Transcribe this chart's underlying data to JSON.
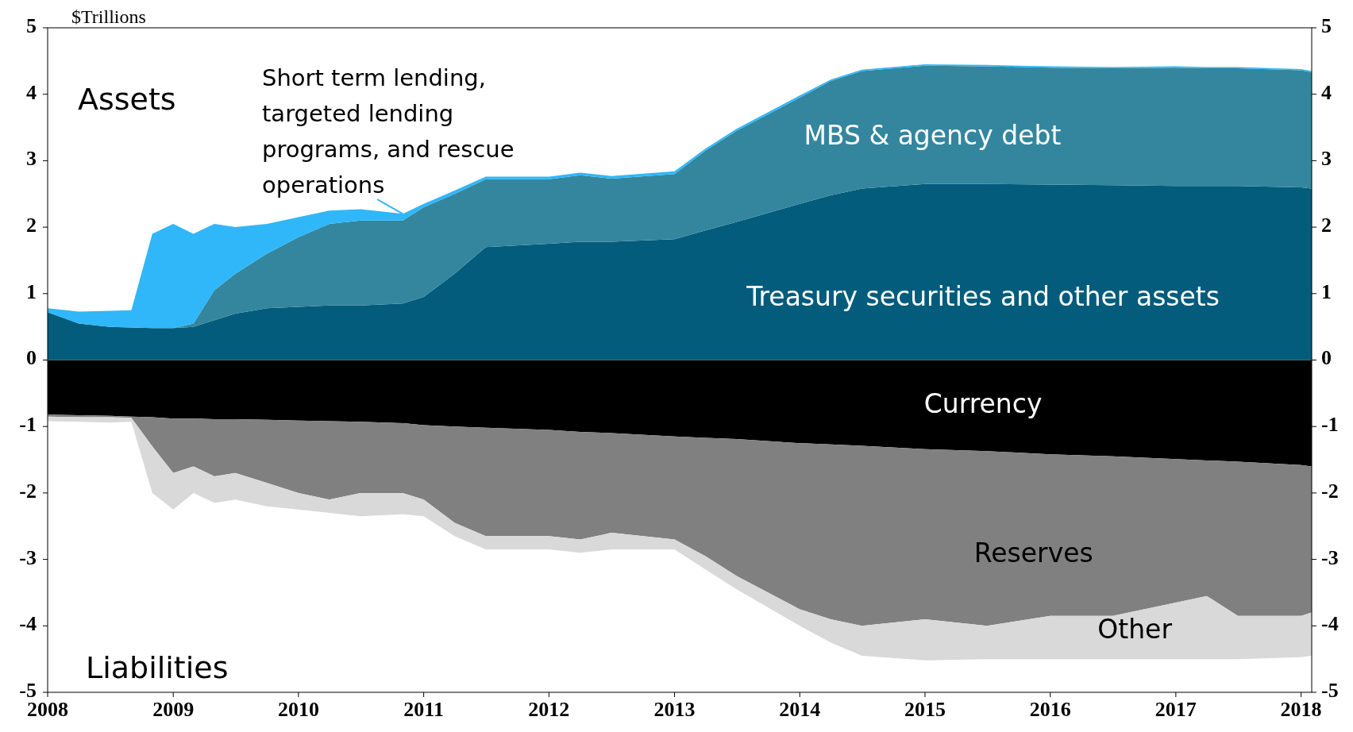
{
  "chart_data": [
    {
      "type": "area",
      "stacked": true,
      "ylabel": "$Trillions",
      "annotations": [
        "Assets"
      ],
      "x": [
        "2008-01",
        "2008-04",
        "2008-07",
        "2008-09",
        "2008-11",
        "2009-01",
        "2009-03",
        "2009-05",
        "2009-07",
        "2009-10",
        "2010-01",
        "2010-04",
        "2010-07",
        "2010-11",
        "2011-01",
        "2011-04",
        "2011-07",
        "2012-01",
        "2012-04",
        "2012-07",
        "2013-01",
        "2013-04",
        "2013-07",
        "2014-01",
        "2014-04",
        "2014-07",
        "2015-01",
        "2015-07",
        "2016-01",
        "2016-07",
        "2017-01",
        "2017-04",
        "2017-07",
        "2018-01",
        "2018-02"
      ],
      "series": [
        {
          "name": "Treasury securities and other assets",
          "color": "#035c7c",
          "values": [
            0.72,
            0.55,
            0.5,
            0.49,
            0.48,
            0.48,
            0.5,
            0.6,
            0.7,
            0.78,
            0.8,
            0.82,
            0.82,
            0.85,
            0.95,
            1.3,
            1.7,
            1.75,
            1.78,
            1.78,
            1.82,
            1.95,
            2.08,
            2.35,
            2.48,
            2.58,
            2.65,
            2.65,
            2.64,
            2.63,
            2.62,
            2.62,
            2.62,
            2.6,
            2.58
          ]
        },
        {
          "name": "MBS & agency debt",
          "color": "#33869e",
          "values": [
            0,
            0,
            0,
            0,
            0,
            0,
            0.05,
            0.45,
            0.6,
            0.82,
            1.05,
            1.23,
            1.28,
            1.25,
            1.35,
            1.2,
            1.02,
            0.97,
            1.0,
            0.95,
            0.98,
            1.2,
            1.37,
            1.6,
            1.72,
            1.77,
            1.78,
            1.77,
            1.76,
            1.76,
            1.78,
            1.77,
            1.77,
            1.76,
            1.75
          ]
        },
        {
          "name": "Short term lending, targeted lending programs, and rescue operations",
          "color": "#2fb7f9",
          "values": [
            0.06,
            0.18,
            0.24,
            0.26,
            1.42,
            1.57,
            1.35,
            1.0,
            0.7,
            0.45,
            0.3,
            0.2,
            0.17,
            0.1,
            0.05,
            0.05,
            0.04,
            0.04,
            0.04,
            0.04,
            0.04,
            0.03,
            0.03,
            0.03,
            0.02,
            0.02,
            0.02,
            0.02,
            0.02,
            0.02,
            0.02,
            0.02,
            0.02,
            0.02,
            0.02
          ]
        }
      ],
      "xlim": [
        "2008-01",
        "2018-02"
      ],
      "xticks": [
        "2008",
        "2009",
        "2010",
        "2011",
        "2012",
        "2013",
        "2014",
        "2015",
        "2016",
        "2017",
        "2018"
      ],
      "ylim": [
        -5,
        5
      ],
      "yticks": [
        5,
        4,
        3,
        2,
        1,
        0,
        -1,
        -2,
        -3,
        -4,
        -5
      ],
      "y2lim": [
        -5,
        5
      ],
      "y2ticks": [
        5,
        4,
        3,
        2,
        1,
        0,
        -1,
        -2,
        -3,
        -4,
        -5
      ]
    },
    {
      "type": "area",
      "stacked": true,
      "tick_labels": false,
      "annotations": [
        "Liabilities"
      ],
      "x": [
        "2008-01",
        "2008-04",
        "2008-07",
        "2008-09",
        "2008-11",
        "2009-01",
        "2009-03",
        "2009-05",
        "2009-07",
        "2009-10",
        "2010-01",
        "2010-04",
        "2010-07",
        "2010-11",
        "2011-01",
        "2011-04",
        "2011-07",
        "2012-01",
        "2012-04",
        "2012-07",
        "2013-01",
        "2013-04",
        "2013-07",
        "2014-01",
        "2014-04",
        "2014-07",
        "2015-01",
        "2015-07",
        "2016-01",
        "2016-07",
        "2017-01",
        "2017-04",
        "2017-07",
        "2018-01",
        "2018-02"
      ],
      "series": [
        {
          "name": "Currency",
          "color": "#000000",
          "values": [
            -0.82,
            -0.83,
            -0.84,
            -0.85,
            -0.86,
            -0.88,
            -0.88,
            -0.89,
            -0.89,
            -0.9,
            -0.91,
            -0.92,
            -0.93,
            -0.95,
            -0.98,
            -1.0,
            -1.02,
            -1.05,
            -1.08,
            -1.1,
            -1.15,
            -1.17,
            -1.19,
            -1.25,
            -1.27,
            -1.29,
            -1.34,
            -1.37,
            -1.42,
            -1.45,
            -1.49,
            -1.51,
            -1.53,
            -1.58,
            -1.6
          ]
        },
        {
          "name": "Reserves",
          "color": "#808080",
          "values": [
            -0.03,
            -0.03,
            -0.02,
            -0.02,
            -0.44,
            -0.82,
            -0.72,
            -0.86,
            -0.81,
            -0.95,
            -1.09,
            -1.18,
            -1.07,
            -1.05,
            -1.12,
            -1.45,
            -1.63,
            -1.6,
            -1.62,
            -1.5,
            -1.55,
            -1.78,
            -2.06,
            -2.5,
            -2.63,
            -2.71,
            -2.56,
            -2.63,
            -2.43,
            -2.4,
            -2.16,
            -2.04,
            -2.32,
            -2.27,
            -2.2
          ]
        },
        {
          "name": "Other",
          "color": "#d9d9d9",
          "values": [
            -0.07,
            -0.07,
            -0.08,
            -0.06,
            -0.7,
            -0.55,
            -0.4,
            -0.4,
            -0.4,
            -0.35,
            -0.25,
            -0.2,
            -0.35,
            -0.32,
            -0.25,
            -0.2,
            -0.2,
            -0.2,
            -0.2,
            -0.25,
            -0.15,
            -0.2,
            -0.2,
            -0.25,
            -0.35,
            -0.45,
            -0.62,
            -0.5,
            -0.65,
            -0.65,
            -0.85,
            -0.95,
            -0.65,
            -0.62,
            -0.65
          ]
        }
      ],
      "xlim": [
        "2008-01",
        "2018-02"
      ],
      "ylim": [
        -5,
        5
      ]
    }
  ]
}
